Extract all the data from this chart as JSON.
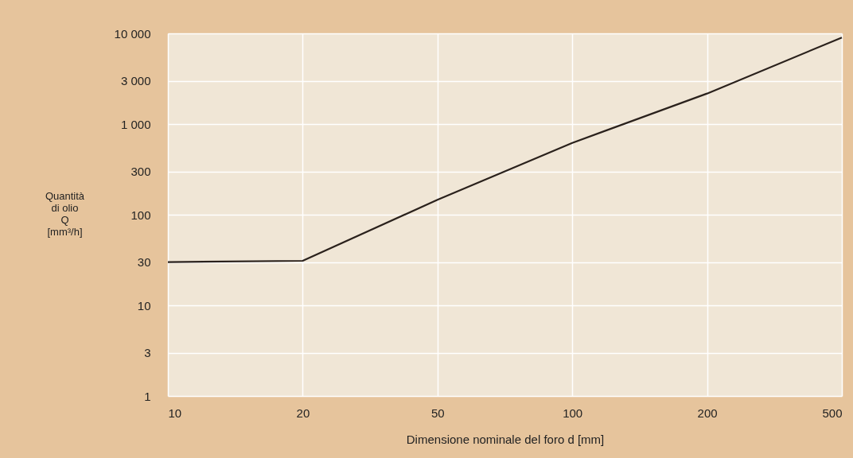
{
  "chart_data": {
    "type": "line",
    "xlabel": "Dimensione nominale del foro d  [mm]",
    "ylabel": "Quantità\ndi olio\nQ\n[mm³/h]",
    "categories": [
      "10",
      "20",
      "50",
      "100",
      "200",
      "500"
    ],
    "series": [
      {
        "color": "#2a211c",
        "values": [
          30,
          31,
          146,
          620,
          2170,
          9000
        ]
      }
    ],
    "log": "y",
    "ylim": [
      1,
      10000
    ],
    "yticks": [
      1,
      3,
      10,
      30,
      100,
      300,
      {
        "value": 1000,
        "label": "1 000"
      },
      {
        "value": 3000,
        "label": "3 000"
      },
      {
        "value": 10000,
        "label": "10 000"
      }
    ],
    "grid": true,
    "marker": "none",
    "line_style": "solid",
    "legend": false
  }
}
